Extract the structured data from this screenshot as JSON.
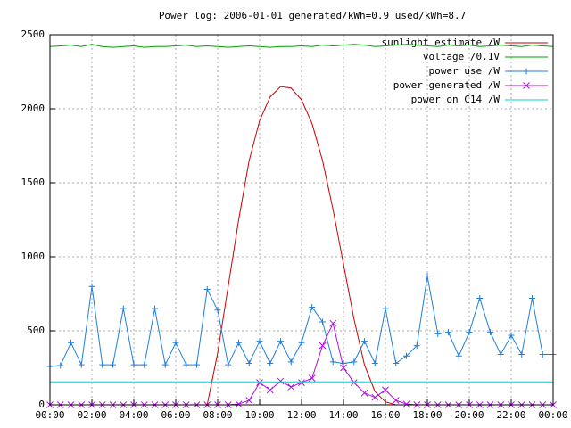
{
  "chart_data": {
    "type": "line",
    "title": "Power log: 2006-01-01 generated/kWh=0.9 used/kWh=8.7",
    "x": [
      0,
      0.5,
      1,
      1.5,
      2,
      2.5,
      3,
      3.5,
      4,
      4.5,
      5,
      5.5,
      6,
      6.5,
      7,
      7.5,
      8,
      8.5,
      9,
      9.5,
      10,
      10.5,
      11,
      11.5,
      12,
      12.5,
      13,
      13.5,
      14,
      14.5,
      15,
      15.5,
      16,
      16.5,
      17,
      17.5,
      18,
      18.5,
      19,
      19.5,
      20,
      20.5,
      21,
      21.5,
      22,
      22.5,
      23,
      23.5,
      24
    ],
    "series": [
      {
        "name": "sunlight estimate /W",
        "color": "#cc0000",
        "marker": "none",
        "values": [
          0,
          0,
          0,
          0,
          0,
          0,
          0,
          0,
          0,
          0,
          0,
          0,
          0,
          0,
          0,
          0,
          350,
          800,
          1250,
          1650,
          1920,
          2080,
          2150,
          2140,
          2060,
          1900,
          1650,
          1320,
          950,
          580,
          270,
          90,
          20,
          0,
          0,
          0,
          0,
          0,
          0,
          0,
          0,
          0,
          0,
          0,
          0,
          0,
          0,
          0,
          0
        ]
      },
      {
        "name": "voltage /0.1V",
        "color": "#00a000",
        "marker": "none",
        "values": [
          2420,
          2425,
          2430,
          2420,
          2435,
          2420,
          2415,
          2420,
          2425,
          2415,
          2420,
          2420,
          2425,
          2430,
          2420,
          2425,
          2420,
          2415,
          2420,
          2425,
          2420,
          2415,
          2420,
          2420,
          2425,
          2420,
          2430,
          2425,
          2430,
          2435,
          2430,
          2420,
          2425,
          2430,
          2435,
          2430,
          2425,
          2420,
          2430,
          2425,
          2430,
          2420,
          2425,
          2430,
          2425,
          2420,
          2430,
          2425,
          2420
        ]
      },
      {
        "name": "power use /W",
        "color": "#1f7fe0",
        "marker": "plus",
        "values": [
          260,
          265,
          420,
          270,
          800,
          270,
          270,
          650,
          270,
          270,
          650,
          270,
          420,
          270,
          270,
          780,
          640,
          270,
          420,
          280,
          430,
          280,
          430,
          290,
          420,
          660,
          560,
          290,
          280,
          290,
          430,
          280,
          650,
          280,
          330,
          400,
          870,
          480,
          490,
          330,
          490,
          720,
          490,
          340,
          470,
          340,
          720,
          340,
          340
        ]
      },
      {
        "name": "power generated /W",
        "color": "#b010e0",
        "marker": "cross",
        "values": [
          0,
          0,
          0,
          0,
          0,
          0,
          0,
          0,
          0,
          0,
          0,
          0,
          0,
          0,
          0,
          0,
          0,
          0,
          5,
          30,
          150,
          100,
          160,
          120,
          150,
          180,
          400,
          550,
          250,
          150,
          80,
          50,
          100,
          30,
          5,
          0,
          0,
          0,
          0,
          0,
          0,
          0,
          0,
          0,
          0,
          0,
          0,
          0,
          0
        ]
      },
      {
        "name": "power on C14 /W",
        "color": "#00d0d0",
        "marker": "none",
        "values": [
          155,
          155,
          155,
          155,
          155,
          155,
          155,
          155,
          155,
          155,
          155,
          155,
          155,
          155,
          155,
          155,
          155,
          155,
          155,
          155,
          155,
          155,
          155,
          155,
          155,
          155,
          155,
          155,
          155,
          155,
          155,
          155,
          155,
          155,
          155,
          155,
          155,
          155,
          155,
          155,
          155,
          155,
          155,
          155,
          155,
          155,
          155,
          155,
          155
        ]
      }
    ],
    "xlim": [
      0,
      24
    ],
    "xticks": [
      {
        "value": 0,
        "label": "00:00"
      },
      {
        "value": 2,
        "label": "02:00"
      },
      {
        "value": 4,
        "label": "04:00"
      },
      {
        "value": 6,
        "label": "06:00"
      },
      {
        "value": 8,
        "label": "08:00"
      },
      {
        "value": 10,
        "label": "10:00"
      },
      {
        "value": 12,
        "label": "12:00"
      },
      {
        "value": 14,
        "label": "14:00"
      },
      {
        "value": 16,
        "label": "16:00"
      },
      {
        "value": 18,
        "label": "18:00"
      },
      {
        "value": 20,
        "label": "20:00"
      },
      {
        "value": 22,
        "label": "22:00"
      },
      {
        "value": 24,
        "label": "00:00"
      }
    ],
    "ylim": [
      0,
      2500
    ],
    "yticks": [
      0,
      500,
      1000,
      1500,
      2000,
      2500
    ],
    "grid": true,
    "legend": "top-right"
  }
}
